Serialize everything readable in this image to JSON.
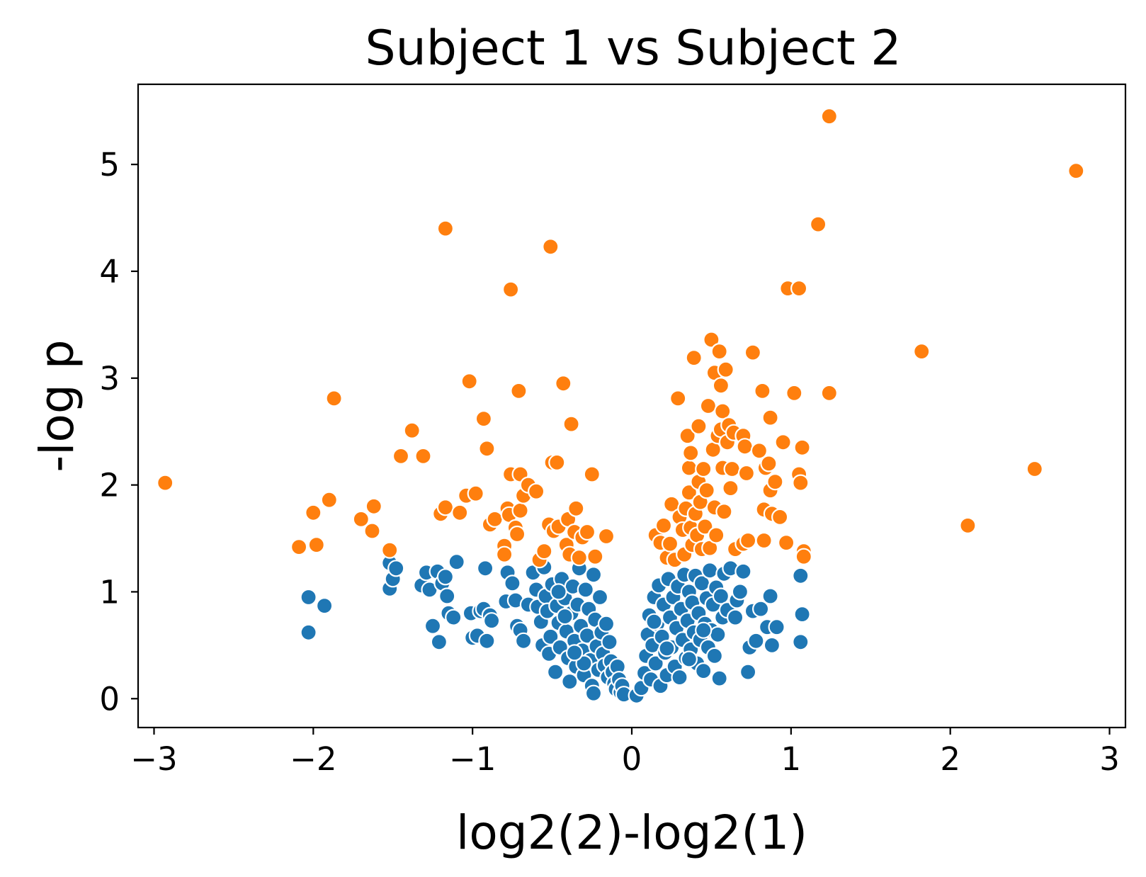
{
  "chart_data": {
    "type": "scatter",
    "title": "Subject 1 vs Subject 2",
    "xlabel": "log2(2)-log2(1)",
    "ylabel": "-log p",
    "xlim": [
      -3.1,
      3.1
    ],
    "ylim": [
      -0.27,
      5.75
    ],
    "xticks": [
      -3,
      -2,
      -1,
      0,
      1,
      2,
      3
    ],
    "xtick_labels": [
      "−3",
      "−2",
      "−1",
      "0",
      "1",
      "2",
      "3"
    ],
    "yticks": [
      0,
      1,
      2,
      3,
      4,
      5
    ],
    "ytick_labels": [
      "0",
      "1",
      "2",
      "3",
      "4",
      "5"
    ],
    "grid": false,
    "legend": "none",
    "series": [
      {
        "color": "#1f77b4",
        "points": [
          [
            -2.03,
            0.95
          ],
          [
            -2.03,
            0.62
          ],
          [
            -1.93,
            0.87
          ],
          [
            -1.52,
            1.27
          ],
          [
            -1.52,
            1.03
          ],
          [
            -1.5,
            1.12
          ],
          [
            -1.48,
            1.22
          ],
          [
            -1.32,
            1.06
          ],
          [
            -1.29,
            1.18
          ],
          [
            -1.27,
            1.02
          ],
          [
            -1.25,
            0.68
          ],
          [
            -1.22,
            1.19
          ],
          [
            -1.21,
            0.53
          ],
          [
            -1.19,
            1.08
          ],
          [
            -1.17,
            1.14
          ],
          [
            -1.16,
            0.96
          ],
          [
            -1.15,
            0.8
          ],
          [
            -1.12,
            0.76
          ],
          [
            -1.1,
            1.28
          ],
          [
            -1.01,
            0.8
          ],
          [
            -1.0,
            0.57
          ],
          [
            -0.97,
            0.59
          ],
          [
            -0.95,
            0.82
          ],
          [
            -0.93,
            0.84
          ],
          [
            -0.92,
            1.22
          ],
          [
            -0.91,
            0.54
          ],
          [
            -0.89,
            0.78
          ],
          [
            -0.88,
            0.73
          ],
          [
            -0.78,
            1.18
          ],
          [
            -0.79,
            0.91
          ],
          [
            -0.75,
            1.08
          ],
          [
            -0.73,
            0.92
          ],
          [
            -0.72,
            0.68
          ],
          [
            -0.7,
            0.64
          ],
          [
            -0.68,
            0.54
          ],
          [
            -0.65,
            0.88
          ],
          [
            -0.62,
            1.18
          ],
          [
            -0.6,
            1.02
          ],
          [
            -0.59,
            0.86
          ],
          [
            -0.57,
            0.72
          ],
          [
            -0.56,
            0.5
          ],
          [
            -0.55,
            1.23
          ],
          [
            -0.54,
            0.96
          ],
          [
            -0.53,
            0.82
          ],
          [
            -0.52,
            0.42
          ],
          [
            -0.51,
            0.58
          ],
          [
            -0.5,
            1.07
          ],
          [
            -0.48,
            0.25
          ],
          [
            -0.47,
            0.87
          ],
          [
            -0.46,
            0.71
          ],
          [
            -0.45,
            0.48
          ],
          [
            -0.44,
            1.12
          ],
          [
            -0.42,
            0.94
          ],
          [
            -0.41,
            0.63
          ],
          [
            -0.4,
            0.38
          ],
          [
            -0.39,
            0.16
          ],
          [
            -0.38,
            0.8
          ],
          [
            -0.37,
            1.05
          ],
          [
            -0.36,
            0.54
          ],
          [
            -0.35,
            0.3
          ],
          [
            -0.34,
            0.88
          ],
          [
            -0.33,
            1.22
          ],
          [
            -0.32,
            0.68
          ],
          [
            -0.31,
            0.45
          ],
          [
            -0.3,
            0.22
          ],
          [
            -0.29,
            1.02
          ],
          [
            -0.28,
            0.59
          ],
          [
            -0.27,
            0.84
          ],
          [
            -0.26,
            0.36
          ],
          [
            -0.25,
            0.12
          ],
          [
            -0.24,
            1.16
          ],
          [
            -0.23,
            0.74
          ],
          [
            -0.22,
            0.49
          ],
          [
            -0.21,
            0.27
          ],
          [
            -0.2,
            0.95
          ],
          [
            -0.19,
            0.62
          ],
          [
            -0.18,
            0.42
          ],
          [
            -0.17,
            0.31
          ],
          [
            -0.16,
            0.7
          ],
          [
            -0.15,
            0.2
          ],
          [
            -0.14,
            0.53
          ],
          [
            -0.13,
            0.35
          ],
          [
            -0.12,
            0.25
          ],
          [
            -0.11,
            0.14
          ],
          [
            -0.1,
            0.09
          ],
          [
            -0.09,
            0.3
          ],
          [
            -0.08,
            0.18
          ],
          [
            -0.07,
            0.06
          ],
          [
            -0.06,
            0.12
          ],
          [
            -0.05,
            0.04
          ],
          [
            -0.3,
            0.33
          ],
          [
            -0.36,
            0.43
          ],
          [
            -0.42,
            0.77
          ],
          [
            -0.46,
            1.0
          ],
          [
            -0.24,
            0.05
          ],
          [
            0.03,
            0.03
          ],
          [
            0.06,
            0.1
          ],
          [
            0.08,
            0.24
          ],
          [
            0.09,
            0.4
          ],
          [
            0.1,
            0.6
          ],
          [
            0.11,
            0.78
          ],
          [
            0.12,
            0.18
          ],
          [
            0.13,
            0.5
          ],
          [
            0.14,
            0.95
          ],
          [
            0.15,
            0.33
          ],
          [
            0.16,
            0.7
          ],
          [
            0.17,
            1.06
          ],
          [
            0.18,
            0.12
          ],
          [
            0.19,
            0.58
          ],
          [
            0.2,
            0.88
          ],
          [
            0.21,
            0.43
          ],
          [
            0.22,
            0.22
          ],
          [
            0.23,
            1.12
          ],
          [
            0.24,
            0.76
          ],
          [
            0.25,
            0.48
          ],
          [
            0.26,
            0.95
          ],
          [
            0.27,
            0.3
          ],
          [
            0.28,
            0.66
          ],
          [
            0.29,
            1.05
          ],
          [
            0.3,
            0.2
          ],
          [
            0.31,
            0.84
          ],
          [
            0.32,
            0.55
          ],
          [
            0.33,
            1.16
          ],
          [
            0.34,
            0.38
          ],
          [
            0.35,
            0.73
          ],
          [
            0.36,
            1.0
          ],
          [
            0.37,
            0.46
          ],
          [
            0.38,
            0.9
          ],
          [
            0.39,
            0.62
          ],
          [
            0.4,
            1.15
          ],
          [
            0.41,
            0.33
          ],
          [
            0.42,
            0.8
          ],
          [
            0.43,
            0.55
          ],
          [
            0.44,
            1.08
          ],
          [
            0.45,
            0.26
          ],
          [
            0.46,
            0.7
          ],
          [
            0.47,
            0.94
          ],
          [
            0.48,
            0.48
          ],
          [
            0.49,
            1.2
          ],
          [
            0.5,
            0.64
          ],
          [
            0.51,
            0.88
          ],
          [
            0.52,
            0.4
          ],
          [
            0.53,
            1.04
          ],
          [
            0.54,
            0.6
          ],
          [
            0.55,
            0.19
          ],
          [
            0.56,
            0.96
          ],
          [
            0.57,
            0.76
          ],
          [
            0.58,
            1.17
          ],
          [
            0.6,
            0.83
          ],
          [
            0.62,
            1.22
          ],
          [
            0.65,
            0.76
          ],
          [
            0.66,
            0.92
          ],
          [
            0.68,
            1.0
          ],
          [
            0.7,
            1.19
          ],
          [
            0.73,
            0.25
          ],
          [
            0.74,
            0.48
          ],
          [
            0.76,
            0.82
          ],
          [
            0.78,
            0.54
          ],
          [
            0.81,
            0.84
          ],
          [
            0.85,
            0.67
          ],
          [
            0.87,
            0.96
          ],
          [
            0.88,
            0.5
          ],
          [
            0.91,
            0.67
          ],
          [
            1.06,
            1.15
          ],
          [
            1.07,
            0.79
          ],
          [
            1.06,
            0.53
          ],
          [
            0.36,
            0.37
          ],
          [
            0.22,
            0.47
          ],
          [
            0.14,
            0.72
          ],
          [
            0.45,
            0.64
          ]
        ]
      },
      {
        "color": "#ff7f0e",
        "points": [
          [
            -2.93,
            2.02
          ],
          [
            -2.09,
            1.42
          ],
          [
            -2.0,
            1.74
          ],
          [
            -1.98,
            1.44
          ],
          [
            -1.9,
            1.86
          ],
          [
            -1.87,
            2.81
          ],
          [
            -1.7,
            1.68
          ],
          [
            -1.63,
            1.57
          ],
          [
            -1.62,
            1.8
          ],
          [
            -1.52,
            1.39
          ],
          [
            -1.45,
            2.27
          ],
          [
            -1.38,
            2.51
          ],
          [
            -1.31,
            2.27
          ],
          [
            -1.2,
            1.73
          ],
          [
            -1.17,
            4.4
          ],
          [
            -1.17,
            1.79
          ],
          [
            -1.08,
            1.74
          ],
          [
            -1.04,
            1.9
          ],
          [
            -1.02,
            2.97
          ],
          [
            -0.98,
            1.92
          ],
          [
            -0.93,
            2.62
          ],
          [
            -0.91,
            2.34
          ],
          [
            -0.89,
            1.63
          ],
          [
            -0.86,
            1.68
          ],
          [
            -0.8,
            1.43
          ],
          [
            -0.8,
            1.35
          ],
          [
            -0.78,
            1.78
          ],
          [
            -0.77,
            1.72
          ],
          [
            -0.76,
            2.1
          ],
          [
            -0.76,
            3.83
          ],
          [
            -0.73,
            1.6
          ],
          [
            -0.72,
            1.54
          ],
          [
            -0.71,
            2.88
          ],
          [
            -0.7,
            1.76
          ],
          [
            -0.7,
            2.1
          ],
          [
            -0.68,
            1.9
          ],
          [
            -0.65,
            2.0
          ],
          [
            -0.6,
            1.94
          ],
          [
            -0.58,
            1.3
          ],
          [
            -0.55,
            1.38
          ],
          [
            -0.52,
            1.63
          ],
          [
            -0.51,
            4.23
          ],
          [
            -0.5,
            2.21
          ],
          [
            -0.49,
            1.57
          ],
          [
            -0.47,
            2.21
          ],
          [
            -0.46,
            1.61
          ],
          [
            -0.43,
            2.95
          ],
          [
            -0.41,
            1.44
          ],
          [
            -0.4,
            1.68
          ],
          [
            -0.39,
            1.35
          ],
          [
            -0.38,
            2.57
          ],
          [
            -0.36,
            1.56
          ],
          [
            -0.35,
            1.78
          ],
          [
            -0.33,
            1.32
          ],
          [
            -0.31,
            1.51
          ],
          [
            -0.28,
            1.56
          ],
          [
            -0.25,
            2.1
          ],
          [
            -0.23,
            1.33
          ],
          [
            -0.16,
            1.52
          ],
          [
            0.15,
            1.53
          ],
          [
            0.18,
            1.46
          ],
          [
            0.2,
            1.62
          ],
          [
            0.22,
            1.32
          ],
          [
            0.24,
            1.45
          ],
          [
            0.25,
            1.82
          ],
          [
            0.27,
            1.3
          ],
          [
            0.29,
            2.81
          ],
          [
            0.3,
            1.7
          ],
          [
            0.32,
            1.58
          ],
          [
            0.33,
            1.35
          ],
          [
            0.34,
            1.78
          ],
          [
            0.35,
            2.46
          ],
          [
            0.36,
            1.93
          ],
          [
            0.36,
            2.16
          ],
          [
            0.37,
            1.6
          ],
          [
            0.37,
            2.3
          ],
          [
            0.38,
            1.44
          ],
          [
            0.39,
            3.19
          ],
          [
            0.4,
            1.73
          ],
          [
            0.41,
            1.53
          ],
          [
            0.42,
            2.03
          ],
          [
            0.42,
            2.55
          ],
          [
            0.43,
            1.84
          ],
          [
            0.44,
            1.4
          ],
          [
            0.45,
            2.15
          ],
          [
            0.46,
            1.61
          ],
          [
            0.47,
            1.95
          ],
          [
            0.48,
            2.74
          ],
          [
            0.49,
            1.41
          ],
          [
            0.5,
            3.36
          ],
          [
            0.51,
            2.33
          ],
          [
            0.52,
            1.79
          ],
          [
            0.52,
            3.05
          ],
          [
            0.53,
            1.53
          ],
          [
            0.54,
            2.46
          ],
          [
            0.55,
            3.25
          ],
          [
            0.56,
            2.52
          ],
          [
            0.56,
            2.93
          ],
          [
            0.57,
            2.16
          ],
          [
            0.57,
            2.69
          ],
          [
            0.58,
            1.75
          ],
          [
            0.59,
            3.08
          ],
          [
            0.6,
            2.4
          ],
          [
            0.61,
            2.56
          ],
          [
            0.62,
            1.97
          ],
          [
            0.63,
            2.15
          ],
          [
            0.64,
            2.49
          ],
          [
            0.65,
            1.4
          ],
          [
            0.7,
            1.45
          ],
          [
            0.7,
            2.46
          ],
          [
            0.71,
            2.36
          ],
          [
            0.72,
            2.11
          ],
          [
            0.73,
            1.48
          ],
          [
            0.76,
            3.24
          ],
          [
            0.8,
            2.32
          ],
          [
            0.82,
            2.88
          ],
          [
            0.83,
            1.48
          ],
          [
            0.83,
            1.77
          ],
          [
            0.84,
            2.16
          ],
          [
            0.86,
            2.2
          ],
          [
            0.87,
            1.95
          ],
          [
            0.87,
            2.63
          ],
          [
            0.88,
            1.73
          ],
          [
            0.9,
            2.03
          ],
          [
            0.93,
            1.7
          ],
          [
            0.95,
            2.4
          ],
          [
            0.97,
            1.46
          ],
          [
            0.98,
            3.84
          ],
          [
            1.02,
            2.86
          ],
          [
            1.05,
            3.84
          ],
          [
            1.05,
            2.1
          ],
          [
            1.06,
            2.02
          ],
          [
            1.07,
            2.35
          ],
          [
            1.08,
            1.38
          ],
          [
            1.08,
            1.33
          ],
          [
            1.17,
            4.44
          ],
          [
            1.24,
            5.45
          ],
          [
            1.24,
            2.86
          ],
          [
            1.82,
            3.25
          ],
          [
            2.11,
            1.62
          ],
          [
            2.53,
            2.15
          ],
          [
            2.79,
            4.94
          ]
        ]
      }
    ]
  }
}
